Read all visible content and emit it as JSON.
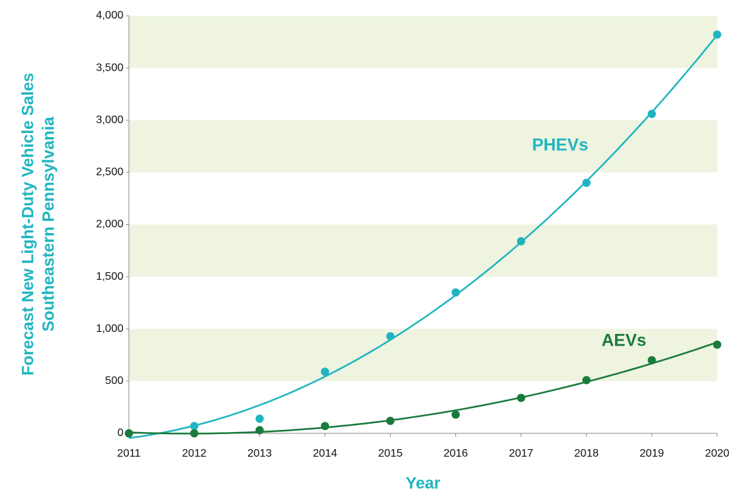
{
  "chart_data": {
    "type": "scatter",
    "y_label": [
      "Forecast New Light-Duty Vehicle Sales",
      "Southeastern Pennsylvania"
    ],
    "x_label": "Year",
    "x": [
      2011,
      2012,
      2013,
      2014,
      2015,
      2016,
      2017,
      2018,
      2019,
      2020
    ],
    "series": [
      {
        "name": "PHEVs",
        "color": "#1fb5c0",
        "values": [
          0,
          70,
          140,
          590,
          930,
          1350,
          1840,
          2400,
          3060,
          3820
        ]
      },
      {
        "name": "AEVs",
        "color": "#1a7a3c",
        "values": [
          0,
          0,
          30,
          70,
          120,
          180,
          340,
          510,
          700,
          850
        ]
      }
    ],
    "xlim": [
      2011,
      2020
    ],
    "xticks": [
      2011,
      2012,
      2013,
      2014,
      2015,
      2016,
      2017,
      2018,
      2019,
      2020
    ],
    "ylim": [
      0,
      4000
    ],
    "yticks": [
      0,
      500,
      {
        "value": 1000,
        "label": "1,000"
      },
      {
        "value": 1500,
        "label": "1,500"
      },
      {
        "value": 2000,
        "label": "2,000"
      },
      {
        "value": 2500,
        "label": "2,500"
      },
      {
        "value": 3000,
        "label": "3,000"
      },
      {
        "value": 3500,
        "label": "3,500"
      },
      {
        "value": 4000,
        "label": "4,000"
      }
    ],
    "band_color": "#eef4e0",
    "trendline": "polynomial"
  }
}
